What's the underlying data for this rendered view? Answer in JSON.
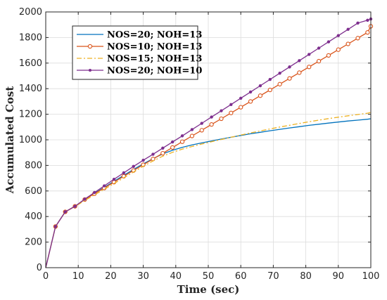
{
  "chart_data": {
    "type": "line",
    "xlabel": "Time (sec)",
    "ylabel": "Accumulated Cost",
    "xlim": [
      0,
      100
    ],
    "ylim": [
      0,
      2000
    ],
    "xticks": [
      0,
      10,
      20,
      30,
      40,
      50,
      60,
      70,
      80,
      90,
      100
    ],
    "yticks": [
      0,
      200,
      400,
      600,
      800,
      1000,
      1200,
      1400,
      1600,
      1800,
      2000
    ],
    "grid": true,
    "legend_position": "top-left",
    "x": [
      0,
      3,
      6,
      9,
      12,
      15,
      18,
      21,
      24,
      27,
      30,
      33,
      36,
      39,
      42,
      45,
      48,
      51,
      54,
      57,
      60,
      63,
      66,
      69,
      72,
      75,
      78,
      81,
      84,
      87,
      90,
      93,
      96,
      99,
      100
    ],
    "series": [
      {
        "name": "NOS=20; NOH=13",
        "color": "#0072BD",
        "style": "solid",
        "marker": "none",
        "values": [
          0,
          322,
          437,
          480,
          533,
          582,
          628,
          676,
          722,
          768,
          812,
          853,
          890,
          918,
          941,
          960,
          976,
          991,
          1006,
          1020,
          1034,
          1047,
          1059,
          1071,
          1082,
          1093,
          1103,
          1113,
          1122,
          1131,
          1139,
          1147,
          1154,
          1161,
          1165
        ]
      },
      {
        "name": "NOS=10; NOH=13",
        "color": "#D95319",
        "style": "solid",
        "marker": "circle",
        "values": [
          0,
          322,
          437,
          480,
          533,
          579,
          623,
          669,
          715,
          760,
          805,
          850,
          895,
          940,
          985,
          1030,
          1075,
          1120,
          1165,
          1210,
          1255,
          1300,
          1345,
          1390,
          1435,
          1480,
          1525,
          1570,
          1615,
          1660,
          1705,
          1750,
          1795,
          1840,
          1888
        ]
      },
      {
        "name": "NOS=15; NOH=13",
        "color": "#EDB120",
        "style": "dashdot",
        "marker": "none",
        "values": [
          0,
          322,
          437,
          478,
          525,
          570,
          613,
          658,
          703,
          748,
          793,
          835,
          872,
          902,
          927,
          948,
          967,
          985,
          1003,
          1020,
          1037,
          1054,
          1070,
          1085,
          1100,
          1114,
          1128,
          1141,
          1154,
          1166,
          1177,
          1188,
          1198,
          1208,
          1215
        ]
      },
      {
        "name": "NOS=20; NOH=10",
        "color": "#7E2F8E",
        "style": "solid",
        "marker": "dot",
        "values": [
          0,
          322,
          437,
          480,
          536,
          588,
          640,
          691,
          742,
          792,
          840,
          887,
          935,
          983,
          1031,
          1080,
          1129,
          1178,
          1227,
          1276,
          1325,
          1374,
          1423,
          1472,
          1521,
          1570,
          1619,
          1668,
          1717,
          1766,
          1815,
          1864,
          1913,
          1935,
          1945
        ]
      }
    ]
  }
}
